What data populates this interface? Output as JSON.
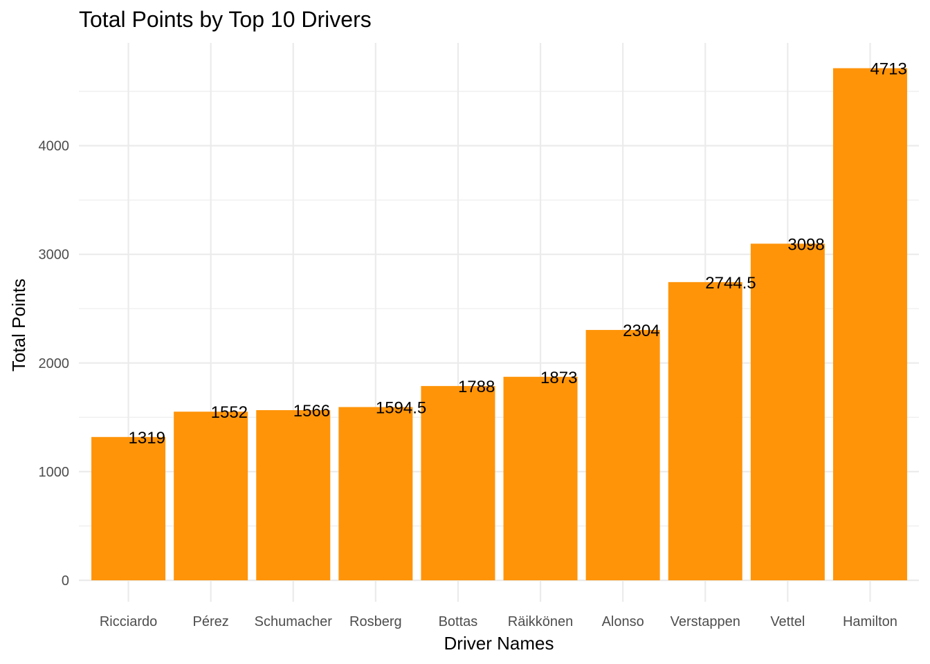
{
  "chart_data": {
    "type": "bar",
    "title": "Total Points by Top 10 Drivers",
    "xlabel": "Driver Names",
    "ylabel": "Total Points",
    "categories": [
      "Ricciardo",
      "Pérez",
      "Schumacher",
      "Rosberg",
      "Bottas",
      "Räikkönen",
      "Alonso",
      "Verstappen",
      "Vettel",
      "Hamilton"
    ],
    "values": [
      1319,
      1552,
      1566,
      1594.5,
      1788,
      1873,
      2304,
      2744.5,
      3098,
      4713
    ],
    "data_labels": [
      "1319",
      "1552",
      "1566",
      "1594.5",
      "1788",
      "1873",
      "2304",
      "2744.5",
      "3098",
      "4713"
    ],
    "ylim": [
      0,
      4950
    ],
    "yticks": [
      0,
      1000,
      2000,
      3000,
      4000
    ],
    "ytick_labels": [
      "0",
      "1000",
      "2000",
      "3000",
      "4000"
    ],
    "grid": true,
    "legend": "none",
    "bar_color": "#FF9409"
  }
}
